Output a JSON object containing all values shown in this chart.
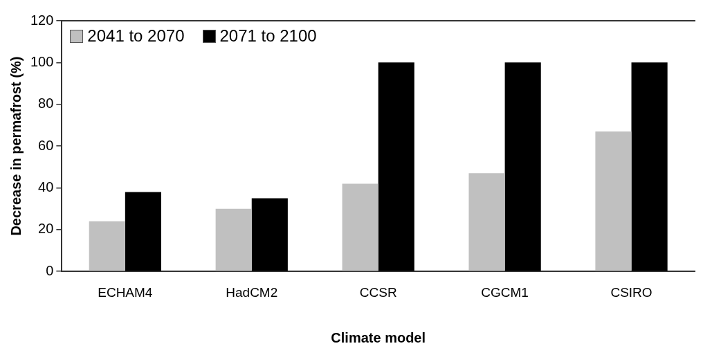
{
  "chart_data": {
    "type": "bar",
    "xlabel": "Climate model",
    "ylabel": "Decrease in permafrost (%)",
    "categories": [
      "ECHAM4",
      "HadCM2",
      "CCSR",
      "CGCM1",
      "CSIRO"
    ],
    "series": [
      {
        "name": "2041 to 2070",
        "color": "#c0c0c0",
        "values": [
          24,
          30,
          42,
          47,
          67
        ]
      },
      {
        "name": "2071 to 2100",
        "color": "#000000",
        "values": [
          38,
          35,
          100,
          100,
          100
        ]
      }
    ],
    "ylim": [
      0,
      120
    ],
    "yticks": [
      0,
      20,
      40,
      60,
      80,
      100,
      120
    ],
    "grid": false,
    "legend": "top left"
  }
}
